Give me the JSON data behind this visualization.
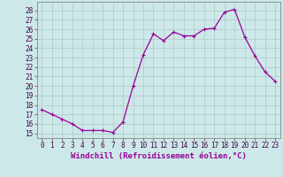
{
  "x": [
    0,
    1,
    2,
    3,
    4,
    5,
    6,
    7,
    8,
    9,
    10,
    11,
    12,
    13,
    14,
    15,
    16,
    17,
    18,
    19,
    20,
    21,
    22,
    23
  ],
  "y": [
    17.5,
    17.0,
    16.5,
    16.0,
    15.3,
    15.3,
    15.3,
    15.1,
    16.2,
    20.0,
    23.3,
    25.5,
    24.8,
    25.7,
    25.3,
    25.3,
    26.0,
    26.1,
    27.8,
    28.1,
    25.2,
    23.2,
    21.5,
    20.5
  ],
  "line_color": "#990099",
  "marker": "+",
  "marker_size": 3,
  "marker_lw": 0.8,
  "bg_color": "#cce8e8",
  "grid_color": "#b0c8c8",
  "xlabel": "Windchill (Refroidissement éolien,°C)",
  "xlabel_fontsize": 6.5,
  "ylabel_ticks": [
    15,
    16,
    17,
    18,
    19,
    20,
    21,
    22,
    23,
    24,
    25,
    26,
    27,
    28
  ],
  "xlim": [
    -0.5,
    23.5
  ],
  "ylim": [
    14.5,
    28.9
  ],
  "tick_fontsize": 5.5,
  "line_width": 0.9
}
